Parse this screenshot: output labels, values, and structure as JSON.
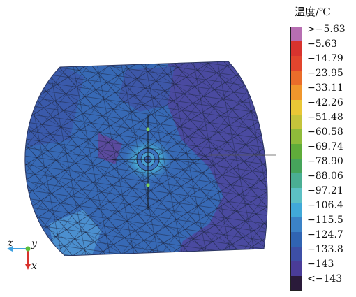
{
  "legend": {
    "title": "温度/℃",
    "entries": [
      {
        "label": ">−5.63",
        "color": "#b76eb2"
      },
      {
        "label": "−5.63",
        "color": "#d8332e"
      },
      {
        "label": "−14.79",
        "color": "#e2452d"
      },
      {
        "label": "−23.95",
        "color": "#ea6d2a"
      },
      {
        "label": "−33.11",
        "color": "#f0962c"
      },
      {
        "label": "−42.26",
        "color": "#e9c736"
      },
      {
        "label": "−51.48",
        "color": "#c4c43b"
      },
      {
        "label": "−60.58",
        "color": "#8fbb3a"
      },
      {
        "label": "−69.74",
        "color": "#5fac3a"
      },
      {
        "label": "−78.90",
        "color": "#46a45b"
      },
      {
        "label": "−88.06",
        "color": "#4aae93"
      },
      {
        "label": "−97.21",
        "color": "#5cc0c4"
      },
      {
        "label": "−106.4",
        "color": "#41a9d8"
      },
      {
        "label": "−115.5",
        "color": "#3b82c6"
      },
      {
        "label": "−124.7",
        "color": "#3064b2"
      },
      {
        "label": "−133.8",
        "color": "#3d4fa6"
      },
      {
        "label": "−143",
        "color": "#4a3c98"
      },
      {
        "label": "<−143",
        "color": "#2a1a3a"
      }
    ]
  },
  "axes": {
    "z": "z",
    "y": "y",
    "x": "x"
  }
}
